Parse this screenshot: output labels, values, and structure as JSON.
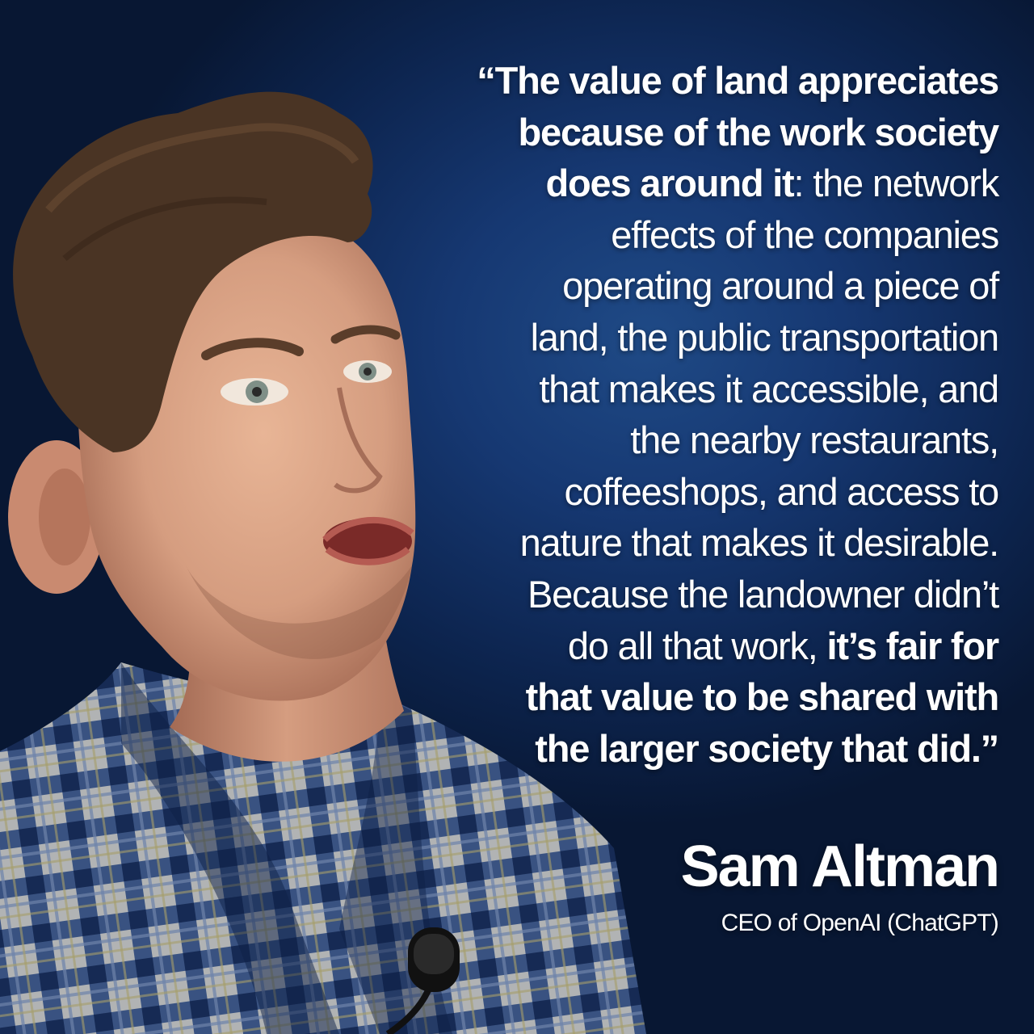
{
  "quote": {
    "lines": [
      {
        "bold": "“The value of land appreciates",
        "normal": ""
      },
      {
        "bold": "because of the work society",
        "normal": ""
      },
      {
        "bold": "does around it",
        "normal": ": the network"
      },
      {
        "bold": "",
        "normal": "effects of the companies"
      },
      {
        "bold": "",
        "normal": "operating around a piece of"
      },
      {
        "bold": "",
        "normal": "land, the public transportation"
      },
      {
        "bold": "",
        "normal": "that makes it accessible, and"
      },
      {
        "bold": "",
        "normal": "the nearby restaurants,"
      },
      {
        "bold": "",
        "normal": "coffeeshops, and access to"
      },
      {
        "bold": "",
        "normal": "nature that makes it desirable."
      },
      {
        "bold": "",
        "normal": "Because the landowner didn’t"
      },
      {
        "normal": "do all that work, ",
        "bold": "it’s fair for",
        "order": "normal-first"
      },
      {
        "bold": "that value to be shared with",
        "normal": ""
      },
      {
        "bold": "the larger society that did.”",
        "normal": ""
      }
    ]
  },
  "author": {
    "name": "Sam Altman",
    "title": "CEO of OpenAI (ChatGPT)"
  },
  "colors": {
    "background": "#163872",
    "text": "#ffffff",
    "shirt_blue": "#2d4f8c",
    "skin": "#d9a487",
    "hair": "#4a3424"
  }
}
